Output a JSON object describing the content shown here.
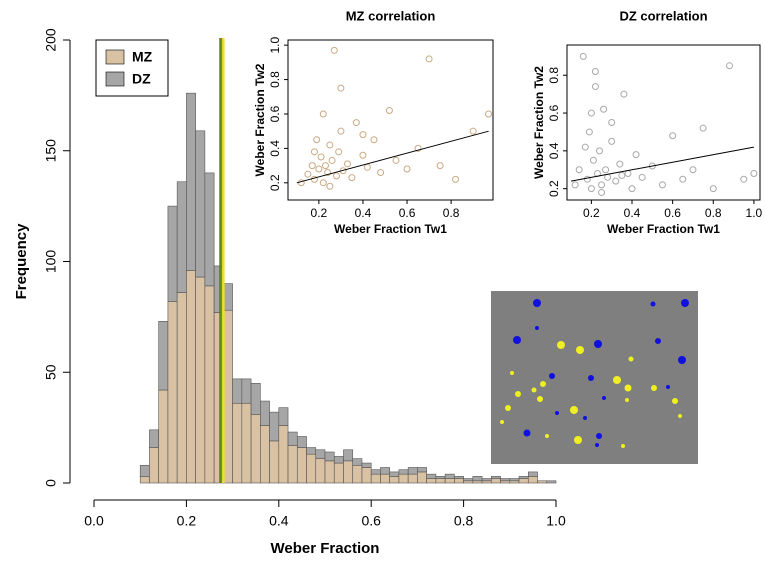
{
  "chart_data": [
    {
      "type": "histogram",
      "xlabel": "Weber Fraction",
      "ylabel": "Frequency",
      "bins": [
        0.1,
        0.12,
        0.14,
        0.16,
        0.18,
        0.2,
        0.22,
        0.24,
        0.26,
        0.28,
        0.3,
        0.32,
        0.34,
        0.36,
        0.38,
        0.4,
        0.42,
        0.44,
        0.46,
        0.48,
        0.5,
        0.52,
        0.54,
        0.56,
        0.58,
        0.6,
        0.62,
        0.64,
        0.66,
        0.68,
        0.7,
        0.72,
        0.74,
        0.76,
        0.78,
        0.8,
        0.82,
        0.84,
        0.86,
        0.88,
        0.9,
        0.92,
        0.94,
        0.96,
        0.98,
        1.0
      ],
      "series": [
        {
          "name": "MZ",
          "color": "#d9c1a4",
          "values": [
            3,
            16,
            42,
            82,
            86,
            96,
            93,
            89,
            77,
            78,
            36,
            36,
            31,
            26,
            19,
            26,
            17,
            16,
            13,
            11,
            10,
            9,
            10,
            8,
            7,
            4,
            4,
            3,
            4,
            4,
            5,
            2,
            2,
            2,
            2,
            1,
            1,
            1,
            2,
            1,
            1,
            2,
            3,
            1,
            0
          ]
        },
        {
          "name": "DZ",
          "color": "#a6a6a6",
          "values": [
            5,
            8,
            31,
            43,
            50,
            80,
            66,
            51,
            21,
            12,
            11,
            11,
            14,
            11,
            13,
            8,
            6,
            5,
            3,
            4,
            4,
            3,
            5,
            3,
            2,
            2,
            3,
            2,
            2,
            3,
            2,
            2,
            1,
            2,
            1,
            1,
            2,
            1,
            1,
            1,
            1,
            1,
            2,
            0,
            1
          ]
        }
      ],
      "reference_lines": [
        {
          "value": 0.274,
          "color": "#e02020"
        },
        {
          "value": 0.276,
          "color": "#30b030"
        },
        {
          "value": 0.28,
          "color": "#f0e020"
        }
      ],
      "xlim": [
        0,
        1
      ],
      "ylim": [
        0,
        200
      ],
      "xticks": [
        {
          "value": 0,
          "label": "0.0"
        },
        0.2,
        0.4,
        0.6,
        0.8,
        {
          "value": 1,
          "label": "1.0"
        }
      ],
      "yticks": [
        0,
        50,
        100,
        150,
        200
      ],
      "legend": "top-left"
    },
    {
      "type": "scatter",
      "title": "MZ correlation",
      "xlabel": "Weber Fraction Tw1",
      "ylabel": "Weber Fraction Tw2",
      "color": "#c9a983",
      "x": [
        0.12,
        0.15,
        0.17,
        0.18,
        0.19,
        0.2,
        0.21,
        0.22,
        0.22,
        0.23,
        0.24,
        0.25,
        0.26,
        0.27,
        0.28,
        0.29,
        0.3,
        0.31,
        0.33,
        0.35,
        0.37,
        0.4,
        0.42,
        0.45,
        0.48,
        0.52,
        0.55,
        0.6,
        0.65,
        0.7,
        0.75,
        0.82,
        0.9,
        0.97,
        0.25,
        0.3,
        0.18,
        0.4
      ],
      "y": [
        0.2,
        0.25,
        0.3,
        0.22,
        0.45,
        0.28,
        0.35,
        0.2,
        0.6,
        0.3,
        0.26,
        0.42,
        0.33,
        0.97,
        0.24,
        0.38,
        0.5,
        0.27,
        0.31,
        0.23,
        0.55,
        0.36,
        0.29,
        0.45,
        0.26,
        0.62,
        0.33,
        0.28,
        0.4,
        0.92,
        0.3,
        0.22,
        0.5,
        0.6,
        0.18,
        0.75,
        0.38,
        0.48
      ],
      "fit_line": {
        "x": [
          0.1,
          0.97
        ],
        "y": [
          0.2,
          0.5
        ]
      },
      "xlim": [
        0.06,
        0.99
      ],
      "ylim": [
        0.1,
        1.03
      ],
      "xticks": [
        0.2,
        0.4,
        0.6,
        0.8
      ],
      "yticks": [
        0.2,
        0.4,
        0.6,
        0.8,
        {
          "value": 1,
          "label": "1.0"
        }
      ]
    },
    {
      "type": "scatter",
      "title": "DZ correlation",
      "xlabel": "Weber Fraction Tw1",
      "ylabel": "Weber Fraction Tw2",
      "color": "#a8a8a8",
      "x": [
        0.12,
        0.14,
        0.16,
        0.18,
        0.19,
        0.2,
        0.21,
        0.22,
        0.23,
        0.24,
        0.25,
        0.26,
        0.27,
        0.28,
        0.3,
        0.32,
        0.34,
        0.36,
        0.38,
        0.4,
        0.42,
        0.45,
        0.5,
        0.55,
        0.6,
        0.65,
        0.7,
        0.75,
        0.8,
        0.88,
        0.95,
        1.0,
        0.2,
        0.25,
        0.3,
        0.17,
        0.35,
        0.22
      ],
      "y": [
        0.22,
        0.3,
        0.9,
        0.25,
        0.5,
        0.2,
        0.35,
        0.82,
        0.28,
        0.4,
        0.22,
        0.62,
        0.3,
        0.26,
        0.45,
        0.24,
        0.33,
        0.7,
        0.28,
        0.2,
        0.38,
        0.26,
        0.32,
        0.22,
        0.48,
        0.25,
        0.3,
        0.52,
        0.2,
        0.85,
        0.25,
        0.28,
        0.6,
        0.18,
        0.55,
        0.42,
        0.27,
        0.74
      ],
      "fit_line": {
        "x": [
          0.1,
          1.0
        ],
        "y": [
          0.24,
          0.42
        ]
      },
      "xlim": [
        0.08,
        1.03
      ],
      "ylim": [
        0.14,
        0.96
      ],
      "xticks": [
        0.2,
        0.4,
        0.6,
        0.8,
        {
          "value": 1,
          "label": "1.0"
        }
      ],
      "yticks": [
        0.2,
        0.4,
        0.6,
        0.8
      ]
    }
  ]
}
